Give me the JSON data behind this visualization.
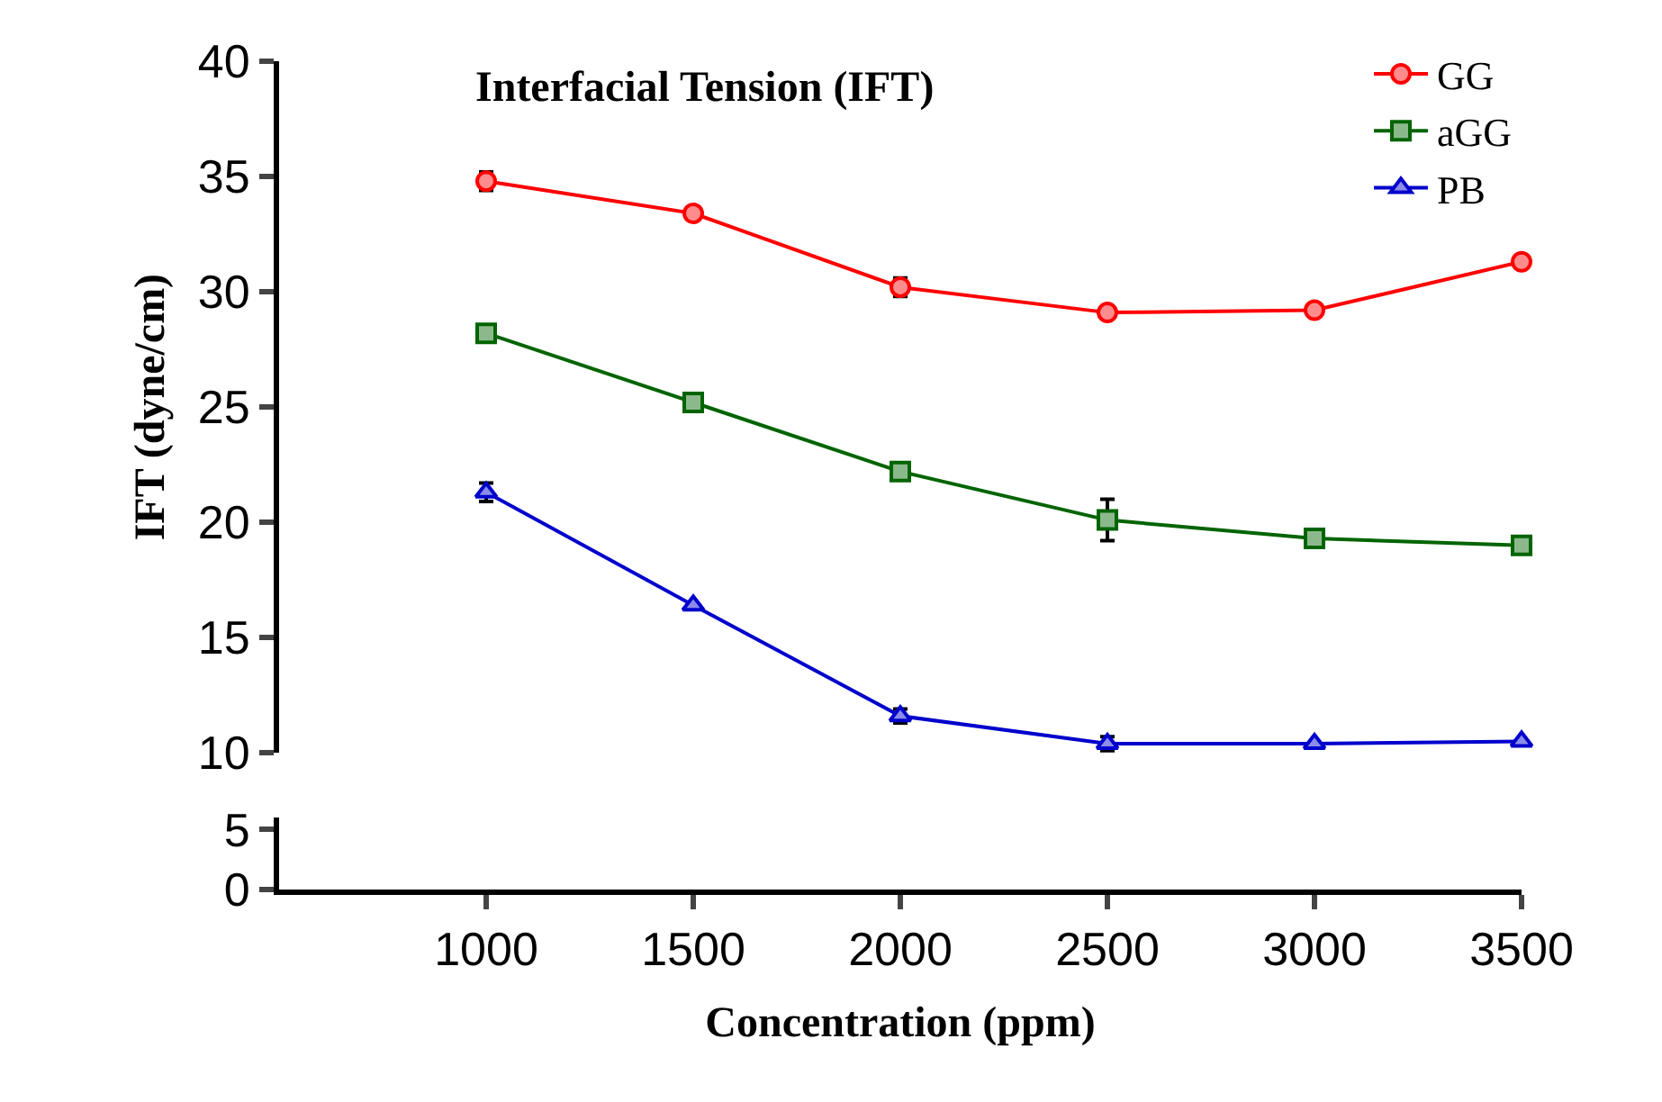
{
  "chart_data": [
    {
      "type": "line",
      "title": "Interfacial Tension (IFT)",
      "ylabel": "IFT (dyne/cm)",
      "x": [
        1000,
        1500,
        2000,
        2500,
        3000,
        3500
      ],
      "xlim": [
        500,
        3500
      ],
      "ylim": [
        10,
        40
      ],
      "yticks": [
        10,
        15,
        20,
        25,
        30,
        35,
        40
      ],
      "tick_labels": "y",
      "legend": "top right",
      "line_style": "solid",
      "series": [
        {
          "name": "GG",
          "color": "#ff0000",
          "marker": "circle",
          "values": [
            34.8,
            33.4,
            30.2,
            29.1,
            29.2,
            31.3
          ],
          "errors": [
            0.4,
            null,
            0.4,
            null,
            null,
            null
          ]
        },
        {
          "name": "aGG",
          "color": "#006400",
          "marker": "square",
          "values": [
            28.2,
            25.2,
            22.2,
            20.1,
            19.3,
            19.0
          ],
          "errors": [
            null,
            null,
            null,
            0.9,
            null,
            null
          ]
        },
        {
          "name": "PB",
          "color": "#0000cd",
          "marker": "triangle",
          "values": [
            21.3,
            16.4,
            11.6,
            10.4,
            10.4,
            10.5
          ],
          "errors": [
            0.4,
            null,
            0.3,
            0.3,
            null,
            null
          ]
        }
      ]
    },
    {
      "type": "line",
      "xlabel": "Concentration (ppm)",
      "xlim": [
        500,
        3500
      ],
      "xticks": [
        1000,
        1500,
        2000,
        2500,
        3000,
        3500
      ],
      "ylim": [
        0,
        6
      ],
      "yticks": [
        0,
        5
      ]
    }
  ]
}
